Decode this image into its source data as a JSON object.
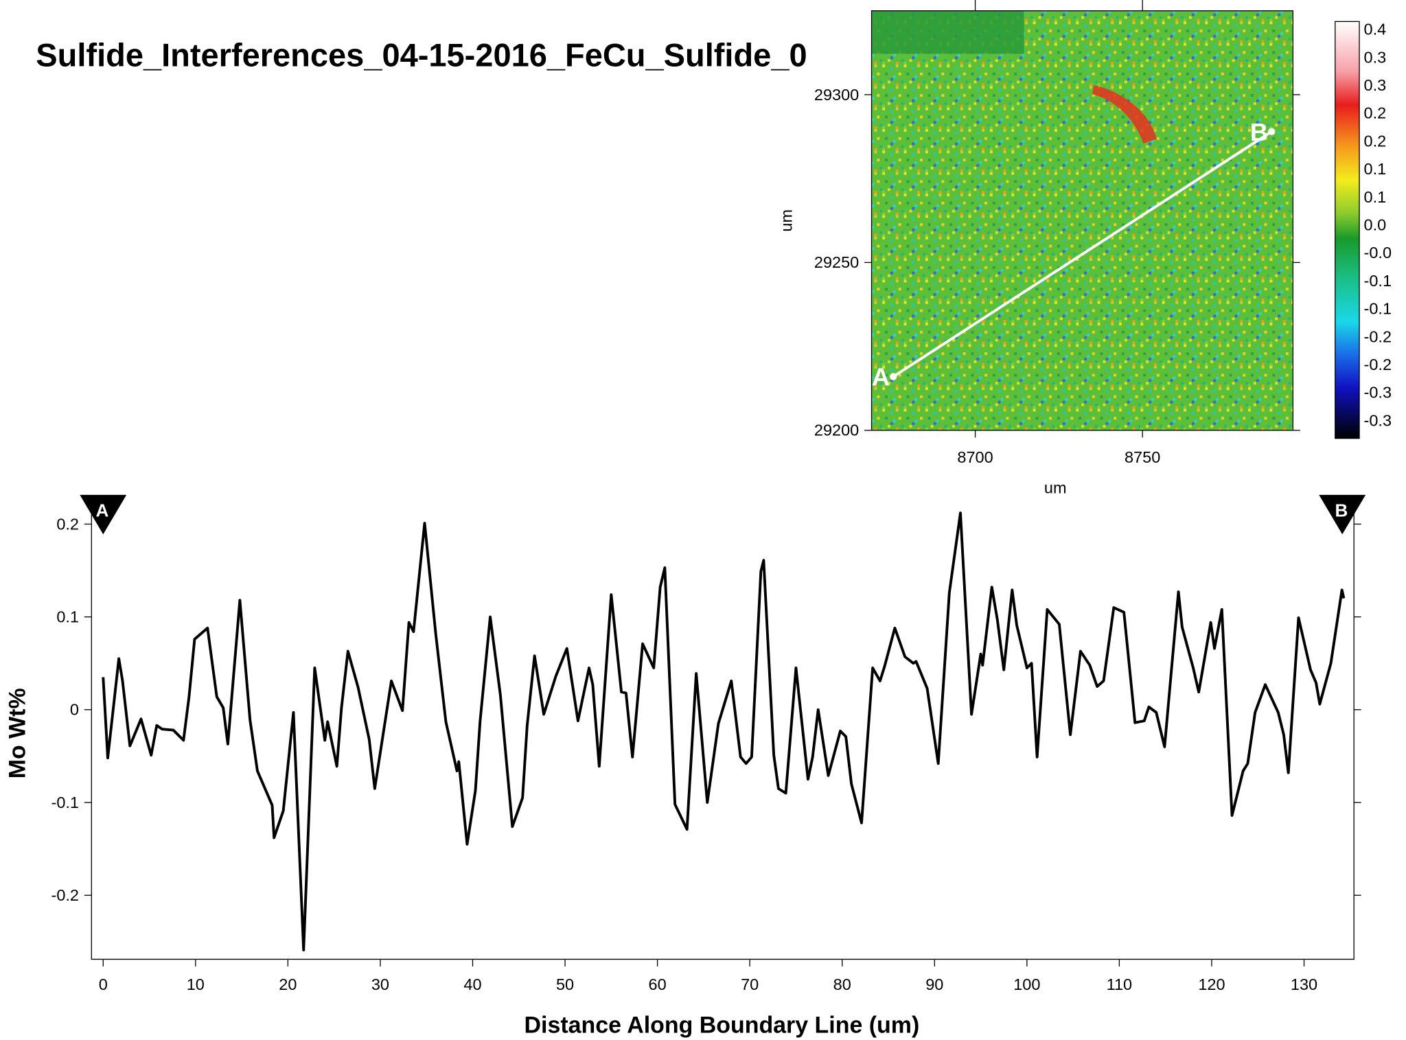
{
  "title": "Sulfide_Interferences_04-15-2016_FeCu_Sulfide_0",
  "chart_data": [
    {
      "type": "heatmap",
      "xlabel": "um",
      "ylabel": "um",
      "xlim": [
        8669,
        8795
      ],
      "ylim": [
        29200,
        29325
      ],
      "xticks": [
        8700,
        8750
      ],
      "yticks": [
        29200,
        29250,
        29300
      ],
      "colorbar": {
        "lim": [
          -0.363,
          0.413
        ],
        "ticks": [
          {
            "value": 0.4,
            "label": "0.4"
          },
          {
            "value": 0.348,
            "label": "0.3"
          },
          {
            "value": 0.296,
            "label": "0.3"
          },
          {
            "value": 0.244,
            "label": "0.2"
          },
          {
            "value": 0.192,
            "label": "0.2"
          },
          {
            "value": 0.14,
            "label": "0.1"
          },
          {
            "value": 0.088,
            "label": "0.1"
          },
          {
            "value": 0.036,
            "label": "0.0"
          },
          {
            "value": -0.016,
            "label": "-0.0"
          },
          {
            "value": -0.068,
            "label": "-0.1"
          },
          {
            "value": -0.12,
            "label": "-0.1"
          },
          {
            "value": -0.172,
            "label": "-0.2"
          },
          {
            "value": -0.224,
            "label": "-0.2"
          },
          {
            "value": -0.276,
            "label": "-0.3"
          },
          {
            "value": -0.328,
            "label": "-0.3"
          }
        ]
      },
      "profile": {
        "labels": [
          "A",
          "B"
        ],
        "x": [
          8675.5,
          8788.6
        ],
        "y": [
          29216,
          29289
        ],
        "color": "#ffffff"
      }
    },
    {
      "type": "line",
      "xlabel": "Distance Along Boundary Line (um)",
      "ylabel": "Mo Wt%",
      "xlim": [
        -1.26,
        135.4
      ],
      "ylim": [
        -0.269,
        0.216
      ],
      "xticks": [
        0,
        10,
        20,
        30,
        40,
        50,
        60,
        70,
        80,
        90,
        100,
        110,
        120,
        130
      ],
      "yticks": [
        -0.2,
        -0.1,
        0,
        0.1,
        0.2
      ],
      "x": [
        0.0,
        0.5,
        1.7,
        2.1,
        2.9,
        4.1,
        5.2,
        5.8,
        6.4,
        7.6,
        8.7,
        9.3,
        9.9,
        11.3,
        12.3,
        13.0,
        13.5,
        14.8,
        15.9,
        16.7,
        18.3,
        18.5,
        19.5,
        20.6,
        21.7,
        22.9,
        24.0,
        24.3,
        25.3,
        25.8,
        26.5,
        27.6,
        28.8,
        29.4,
        31.2,
        32.4,
        33.1,
        33.6,
        34.8,
        36.0,
        37.1,
        38.3,
        38.5,
        39.4,
        40.3,
        40.8,
        41.9,
        43.0,
        44.3,
        45.4,
        45.9,
        46.7,
        47.7,
        49.0,
        50.2,
        51.4,
        52.6,
        53.0,
        53.7,
        55.0,
        56.1,
        56.6,
        57.3,
        58.4,
        59.6,
        60.3,
        60.8,
        61.9,
        63.2,
        64.2,
        65.4,
        66.6,
        68.0,
        69.0,
        69.6,
        70.2,
        71.2,
        71.5,
        72.6,
        73.1,
        73.9,
        75.0,
        76.3,
        76.8,
        77.4,
        78.5,
        79.8,
        80.4,
        81.0,
        82.1,
        83.3,
        84.1,
        84.6,
        85.7,
        86.8,
        87.7,
        88.0,
        89.2,
        90.4,
        91.6,
        92.8,
        94.0,
        95.0,
        95.2,
        96.2,
        96.8,
        97.5,
        98.4,
        98.9,
        100.0,
        100.5,
        101.1,
        102.2,
        103.5,
        104.7,
        105.8,
        106.8,
        107.6,
        108.3,
        109.4,
        110.5,
        111.4,
        111.7,
        112.7,
        113.2,
        114.0,
        114.9,
        116.4,
        116.8,
        118.0,
        118.6,
        119.9,
        120.3,
        121.1,
        122.2,
        123.4,
        123.9,
        124.7,
        125.8,
        127.2,
        127.8,
        128.3,
        129.4,
        130.7,
        131.3,
        131.7,
        132.9,
        134.1,
        134.3
      ],
      "series": [
        {
          "color": "#000000",
          "values": [
            0.035,
            -0.052,
            0.055,
            0.031,
            -0.039,
            -0.01,
            -0.049,
            -0.017,
            -0.021,
            -0.022,
            -0.033,
            0.014,
            0.076,
            0.088,
            0.014,
            0.002,
            -0.037,
            0.118,
            -0.011,
            -0.066,
            -0.103,
            -0.138,
            -0.109,
            -0.003,
            -0.259,
            0.045,
            -0.033,
            -0.013,
            -0.061,
            0.002,
            0.063,
            0.024,
            -0.032,
            -0.085,
            0.031,
            -0.001,
            0.094,
            0.084,
            0.201,
            0.082,
            -0.013,
            -0.066,
            -0.056,
            -0.145,
            -0.087,
            -0.013,
            0.1,
            0.016,
            -0.126,
            -0.095,
            -0.017,
            0.058,
            -0.005,
            0.036,
            0.066,
            -0.012,
            0.045,
            0.027,
            -0.061,
            0.124,
            0.019,
            0.018,
            -0.051,
            0.071,
            0.045,
            0.132,
            0.153,
            -0.102,
            -0.129,
            0.039,
            -0.1,
            -0.015,
            0.031,
            -0.051,
            -0.058,
            -0.051,
            0.149,
            0.161,
            -0.049,
            -0.085,
            -0.09,
            0.045,
            -0.075,
            -0.051,
            0.0,
            -0.071,
            -0.023,
            -0.029,
            -0.08,
            -0.122,
            0.045,
            0.031,
            0.047,
            0.088,
            0.057,
            0.05,
            0.052,
            0.023,
            -0.058,
            0.126,
            0.212,
            -0.005,
            0.06,
            0.048,
            0.132,
            0.097,
            0.043,
            0.129,
            0.091,
            0.045,
            0.05,
            -0.051,
            0.108,
            0.092,
            -0.027,
            0.063,
            0.048,
            0.025,
            0.031,
            0.11,
            0.105,
            0.016,
            -0.014,
            -0.012,
            0.003,
            -0.003,
            -0.04,
            0.127,
            0.089,
            0.045,
            0.019,
            0.094,
            0.066,
            0.108,
            -0.114,
            -0.066,
            -0.058,
            -0.003,
            0.027,
            -0.003,
            -0.027,
            -0.068,
            0.099,
            0.043,
            0.029,
            0.006,
            0.05,
            0.129,
            0.12
          ]
        }
      ]
    }
  ]
}
